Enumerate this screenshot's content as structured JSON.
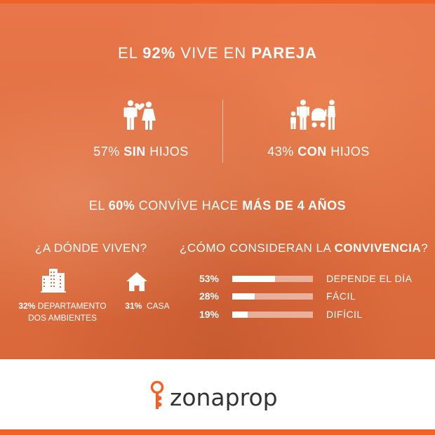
{
  "headline": {
    "pre": "EL ",
    "pct": "92%",
    "mid": " VIVE EN ",
    "bold": "PAREJA"
  },
  "stat_left": {
    "pct": "57% ",
    "bold": "SIN",
    "rest": " HIJOS",
    "icon": "couple-heart-icon"
  },
  "stat_right": {
    "pct": "43% ",
    "bold": "CON",
    "rest": " HIJOS",
    "icon": "family-icon"
  },
  "sub": {
    "pre": "EL ",
    "pct": "60%",
    "mid": " CONVÍVE HACE ",
    "bold": "MÁS DE 4 AÑOS"
  },
  "where": {
    "question": "¿A DÓNDE VIVEN?",
    "items": [
      {
        "pct": "32%",
        "label_line1": " DEPARTAMENTO",
        "label_line2": "DOS AMBIENTES",
        "icon": "buildings-icon"
      },
      {
        "pct": "31%",
        "label_line1": "  CASA",
        "label_line2": "",
        "icon": "house-icon"
      }
    ]
  },
  "how": {
    "question_pre": "¿CÓMO CONSIDERAN LA ",
    "question_bold": "CONVIVENCIA",
    "question_post": "?",
    "rows": [
      {
        "pct_label": "53%",
        "value": 0.53,
        "label": "DEPENDE EL DÍA"
      },
      {
        "pct_label": "28%",
        "value": 0.28,
        "label": "FÁCIL"
      },
      {
        "pct_label": "19%",
        "value": 0.19,
        "label": "DIFÍCIL"
      }
    ]
  },
  "brand": {
    "name": "zonaprop",
    "icon": "key-logo-icon"
  },
  "colors": {
    "brand_orange": "#f0622a",
    "bg_orange": "#e06f40",
    "text_dark": "#333333"
  }
}
